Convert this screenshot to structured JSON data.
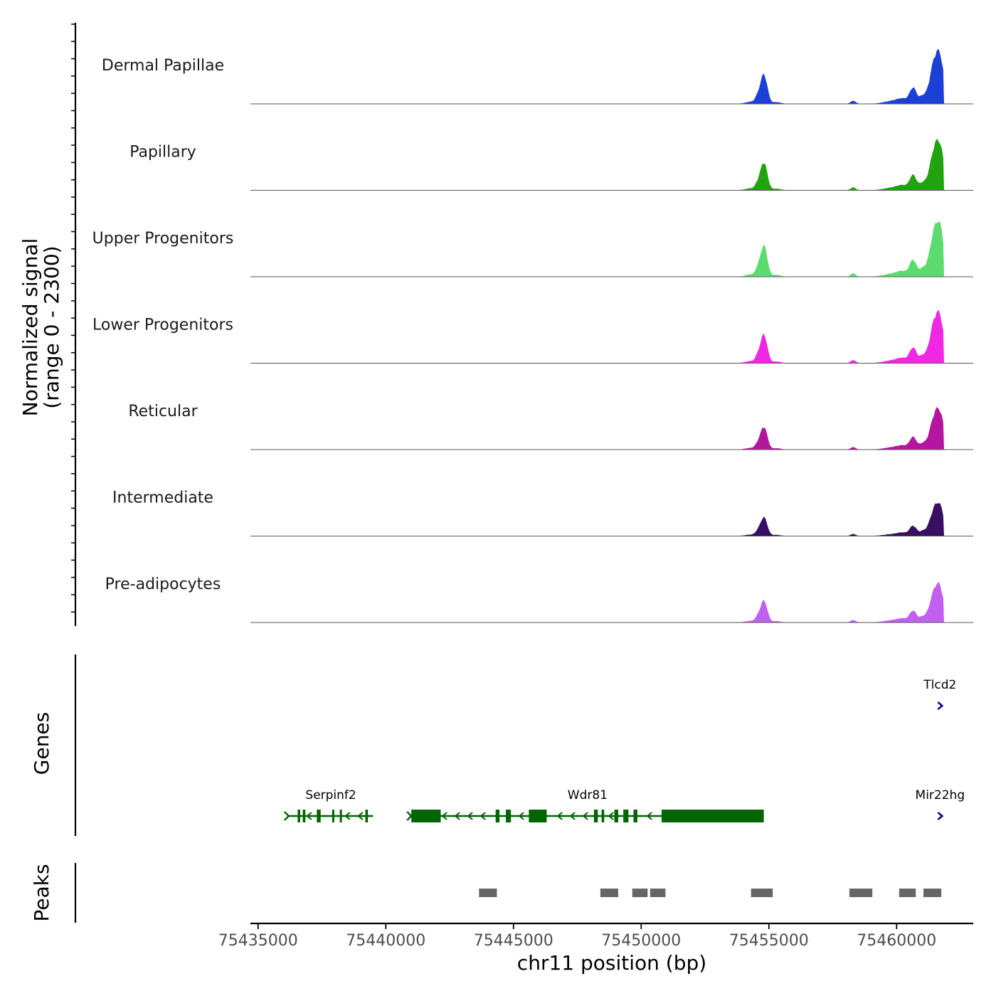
{
  "chart_data": {
    "type": "genome-coverage",
    "xlabel": "chr11 position (bp)",
    "ylabel_line1": "Normalized signal",
    "ylabel_line2": "(range 0 - 2300)",
    "y_range": [
      0,
      2300
    ],
    "x_range": [
      75434700,
      75463000
    ],
    "x_ticks": [
      75435000,
      75440000,
      75445000,
      75450000,
      75455000,
      75460000
    ],
    "x_tick_labels": [
      "75435000",
      "75440000",
      "75445000",
      "75450000",
      "75455000",
      "75460000"
    ],
    "signal_bin_bp": 60,
    "peak_shape": [
      {
        "center": 75454800,
        "width": 130,
        "height": 0.58
      },
      {
        "center": 75454550,
        "width": 90,
        "height": 0.1
      },
      {
        "center": 75454300,
        "width": 200,
        "height": 0.04
      },
      {
        "center": 75455300,
        "width": 150,
        "height": 0.03
      },
      {
        "center": 75458300,
        "width": 90,
        "height": 0.06
      },
      {
        "center": 75459800,
        "width": 300,
        "height": 0.05
      },
      {
        "center": 75460250,
        "width": 220,
        "height": 0.09
      },
      {
        "center": 75460650,
        "width": 130,
        "height": 0.3
      },
      {
        "center": 75461000,
        "width": 120,
        "height": 0.12
      },
      {
        "center": 75461550,
        "width": 220,
        "height": 0.95
      },
      {
        "center": 75461750,
        "width": 120,
        "height": 0.25
      }
    ],
    "tracks": [
      {
        "name": "Dermal Papillae",
        "color": "#1c3fd6",
        "scale": 0.95
      },
      {
        "name": "Papillary",
        "color": "#21a310",
        "scale": 0.9
      },
      {
        "name": "Upper Progenitors",
        "color": "#5cdc6e",
        "scale": 1.0
      },
      {
        "name": "Lower Progenitors",
        "color": "#f027e4",
        "scale": 0.92
      },
      {
        "name": "Reticular",
        "color": "#b5169f",
        "scale": 0.74
      },
      {
        "name": "Intermediate",
        "color": "#380f63",
        "scale": 0.6
      },
      {
        "name": "Pre-adipocytes",
        "color": "#c05ff0",
        "scale": 0.7
      }
    ],
    "genes_label": "Genes",
    "genes": [
      {
        "name": "Tlcd2",
        "start": 75461650,
        "end": 75461750,
        "strand": "+",
        "row": 0,
        "color": "#0b0b80",
        "exons": []
      },
      {
        "name": "Mir22hg",
        "start": 75461650,
        "end": 75461750,
        "strand": "+",
        "row": 1,
        "color": "#0b0b80",
        "exons": []
      },
      {
        "name": "Serpinf2",
        "start": 75436200,
        "end": 75439500,
        "strand": "-",
        "row": 1,
        "color": "#006400",
        "exons": [
          [
            75436550,
            75436650
          ],
          [
            75436750,
            75436850
          ],
          [
            75437300,
            75437450
          ],
          [
            75437900,
            75437950
          ],
          [
            75438200,
            75438250
          ],
          [
            75439200,
            75439300
          ]
        ]
      },
      {
        "name": "Wdr81",
        "start": 75441000,
        "end": 75454800,
        "strand": "-",
        "row": 1,
        "color": "#006400",
        "exons": [
          [
            75441000,
            75442150
          ],
          [
            75444300,
            75444450
          ],
          [
            75444700,
            75444900
          ],
          [
            75445600,
            75446300
          ],
          [
            75448150,
            75448300
          ],
          [
            75448450,
            75448550
          ],
          [
            75448950,
            75449100
          ],
          [
            75449300,
            75449500
          ],
          [
            75449700,
            75449850
          ],
          [
            75450800,
            75454800
          ]
        ]
      }
    ],
    "peaks_label": "Peaks",
    "peaks": [
      [
        75443650,
        75444350
      ],
      [
        75448400,
        75449100
      ],
      [
        75449650,
        75450250
      ],
      [
        75450350,
        75450950
      ],
      [
        75454300,
        75455150
      ],
      [
        75458150,
        75459050
      ],
      [
        75460100,
        75460750
      ],
      [
        75461050,
        75461750
      ]
    ]
  }
}
